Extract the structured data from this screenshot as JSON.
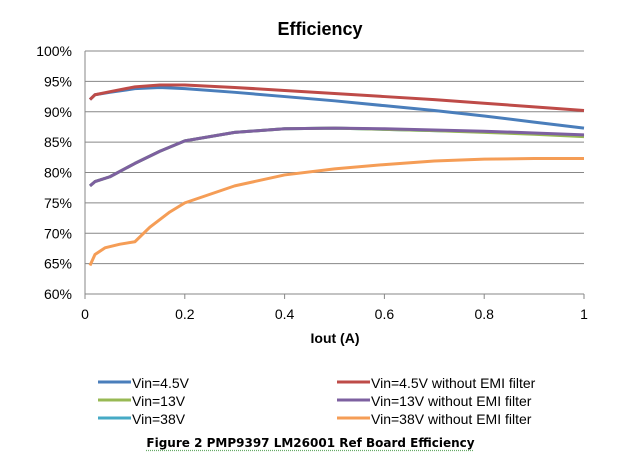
{
  "chart_data": {
    "type": "line",
    "title": "Efficiency",
    "xlabel": "Iout (A)",
    "ylabel": "",
    "xlim": [
      0,
      1
    ],
    "ylim": [
      60,
      100
    ],
    "x_ticks": [
      "0",
      "0.2",
      "0.4",
      "0.6",
      "0.8",
      "1"
    ],
    "y_ticks": [
      "60%",
      "65%",
      "70%",
      "75%",
      "80%",
      "85%",
      "90%",
      "95%",
      "100%"
    ],
    "grid": "horizontal",
    "legend_placement": "bottom",
    "series": [
      {
        "name": "Vin=4.5V",
        "color": "#4a7ebb",
        "x": [
          0.01,
          0.02,
          0.05,
          0.1,
          0.15,
          0.2,
          0.3,
          0.4,
          0.5,
          0.6,
          0.7,
          0.8,
          0.9,
          1
        ],
        "y": [
          92,
          92.8,
          93.2,
          93.8,
          94,
          93.8,
          93.2,
          92.5,
          91.8,
          91,
          90.2,
          89.3,
          88.3,
          87.3
        ]
      },
      {
        "name": "Vin=13V",
        "color": "#98b954",
        "x": [
          0.01,
          0.02,
          0.05,
          0.1,
          0.15,
          0.2,
          0.3,
          0.4,
          0.5,
          0.6,
          0.7,
          0.8,
          0.9,
          1
        ],
        "y": [
          77.8,
          78.5,
          79.3,
          81.5,
          83.5,
          85.2,
          86.6,
          87.2,
          87.3,
          87.1,
          86.9,
          86.6,
          86.3,
          85.9
        ]
      },
      {
        "name": "Vin=38V",
        "color": "#46aac5",
        "x": [
          0.01,
          0.02,
          0.05,
          0.1,
          0.15,
          0.2,
          0.3,
          0.4,
          0.5,
          0.6,
          0.7,
          0.8,
          0.9,
          1
        ],
        "y": [
          77.8,
          78.5,
          79.3,
          81.5,
          83.5,
          85.2,
          86.6,
          87.2,
          87.3,
          87.1,
          86.9,
          86.7,
          86.4,
          86.0
        ]
      },
      {
        "name": "Vin=4.5V without EMI filter",
        "color": "#be4b48",
        "x": [
          0.01,
          0.02,
          0.05,
          0.1,
          0.15,
          0.2,
          0.3,
          0.4,
          0.5,
          0.6,
          0.7,
          0.8,
          0.9,
          1
        ],
        "y": [
          92,
          92.8,
          93.3,
          94.1,
          94.4,
          94.4,
          94,
          93.5,
          93,
          92.5,
          92,
          91.4,
          90.8,
          90.2
        ]
      },
      {
        "name": "Vin=13V without EMI filter",
        "color": "#7d60a0",
        "x": [
          0.01,
          0.02,
          0.05,
          0.1,
          0.15,
          0.2,
          0.3,
          0.4,
          0.5,
          0.6,
          0.7,
          0.8,
          0.9,
          1
        ],
        "y": [
          77.8,
          78.5,
          79.3,
          81.5,
          83.5,
          85.2,
          86.6,
          87.2,
          87.3,
          87.2,
          87,
          86.8,
          86.5,
          86.2
        ]
      },
      {
        "name": "Vin=38V without EMI filter",
        "color": "#f59d56",
        "x": [
          0.01,
          0.02,
          0.04,
          0.07,
          0.1,
          0.13,
          0.17,
          0.2,
          0.3,
          0.4,
          0.5,
          0.6,
          0.7,
          0.8,
          0.9,
          1
        ],
        "y": [
          64.7,
          66.5,
          67.6,
          68.2,
          68.6,
          71,
          73.5,
          75,
          77.8,
          79.6,
          80.6,
          81.3,
          81.9,
          82.2,
          82.3,
          82.3
        ]
      }
    ]
  },
  "caption": "Figure 2 PMP9397 LM26001 Ref Board Efficiency"
}
